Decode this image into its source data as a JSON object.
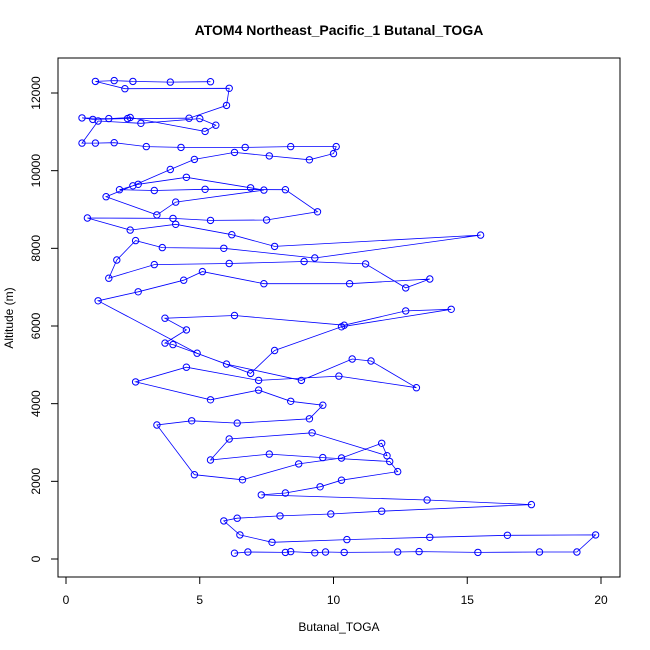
{
  "chart_data": {
    "type": "scatter",
    "title": "ATOM4 Northeast_Pacific_1 Butanal_TOGA",
    "xlabel": "Butanal_TOGA",
    "ylabel": "Altitude (m)",
    "xlim": [
      0,
      20
    ],
    "ylim": [
      0,
      12300
    ],
    "x_ticks": [
      0,
      5,
      10,
      15,
      20
    ],
    "y_ticks": [
      0,
      2000,
      4000,
      6000,
      8000,
      10000,
      12000
    ],
    "x_tick_labels": [
      "0",
      "5",
      "10",
      "15",
      "20"
    ],
    "y_tick_labels": [
      "0",
      "2000",
      "4000",
      "6000",
      "8000",
      "10000",
      "12000"
    ],
    "grid": false,
    "series_color": "#0000ff",
    "marker": "open-circle",
    "connect_points": true,
    "x": [
      6.3,
      6.8,
      8.2,
      8.4,
      9.3,
      9.7,
      10.4,
      12.4,
      13.2,
      15.4,
      17.7,
      19.1,
      19.8,
      16.5,
      13.6,
      10.5,
      7.7,
      6.5,
      5.9,
      6.4,
      8.0,
      9.9,
      11.8,
      17.4,
      13.5,
      7.3,
      8.2,
      9.5,
      10.3,
      12.4,
      12.1,
      9.6,
      7.6,
      5.4,
      6.1,
      9.2,
      12.0,
      11.8,
      10.3,
      8.7,
      6.6,
      4.8,
      3.4,
      4.7,
      6.4,
      9.1,
      9.6,
      8.4,
      7.2,
      5.4,
      2.6,
      4.5,
      7.2,
      10.2,
      13.1,
      11.4,
      10.7,
      8.8,
      6.0,
      4.0,
      3.7,
      4.5,
      3.7,
      6.3,
      10.4,
      12.7,
      14.4,
      10.3,
      7.8,
      6.9,
      4.9,
      1.2,
      2.7,
      4.4,
      5.1,
      7.4,
      10.6,
      13.6,
      12.7,
      11.2,
      8.9,
      6.1,
      3.3,
      1.6,
      1.9,
      2.6,
      3.6,
      5.9,
      9.3,
      15.5,
      7.8,
      6.2,
      4.1,
      2.4,
      0.8,
      4.0,
      5.4,
      7.5,
      9.4,
      8.2,
      5.2,
      3.3,
      2.0,
      2.7,
      4.5,
      6.9,
      7.4,
      4.1,
      3.4,
      1.5,
      2.5,
      3.9,
      4.8,
      6.3,
      7.6,
      9.1,
      10.0,
      10.1,
      8.4,
      6.7,
      4.3,
      3.0,
      1.8,
      1.1,
      0.6,
      1.2,
      2.8,
      5.0,
      5.6,
      5.2,
      2.4,
      1.6,
      0.6,
      1.0,
      2.3,
      4.6,
      6.0,
      6.1,
      2.2,
      1.1,
      1.8,
      2.5,
      3.9,
      5.4
    ],
    "y": [
      150,
      180,
      170,
      190,
      160,
      180,
      170,
      180,
      190,
      170,
      180,
      180,
      620,
      610,
      560,
      500,
      430,
      620,
      980,
      1050,
      1110,
      1160,
      1230,
      1400,
      1520,
      1650,
      1700,
      1860,
      2030,
      2250,
      2510,
      2610,
      2700,
      2550,
      3090,
      3250,
      2660,
      2980,
      2600,
      2450,
      2040,
      2170,
      3450,
      3560,
      3500,
      3610,
      3960,
      4060,
      4350,
      4100,
      4560,
      4940,
      4600,
      4710,
      4410,
      5100,
      5150,
      4600,
      5020,
      5520,
      5560,
      5900,
      6200,
      6270,
      6020,
      6390,
      6430,
      5980,
      5370,
      4780,
      5300,
      6650,
      6880,
      7180,
      7400,
      7090,
      7090,
      7210,
      6980,
      7600,
      7660,
      7610,
      7580,
      7230,
      7700,
      8200,
      8020,
      8000,
      7750,
      8340,
      8050,
      8350,
      8620,
      8470,
      8780,
      8770,
      8720,
      8730,
      8940,
      9510,
      9520,
      9490,
      9510,
      9650,
      9830,
      9560,
      9500,
      9190,
      8860,
      9330,
      9610,
      10030,
      10290,
      10470,
      10380,
      10280,
      10440,
      10620,
      10620,
      10600,
      10600,
      10620,
      10720,
      10710,
      10710,
      11280,
      11220,
      11340,
      11170,
      11010,
      11370,
      11340,
      11360,
      11320,
      11340,
      11350,
      11680,
      12120,
      12110,
      12300,
      12320,
      12300,
      12280,
      12290
    ]
  }
}
